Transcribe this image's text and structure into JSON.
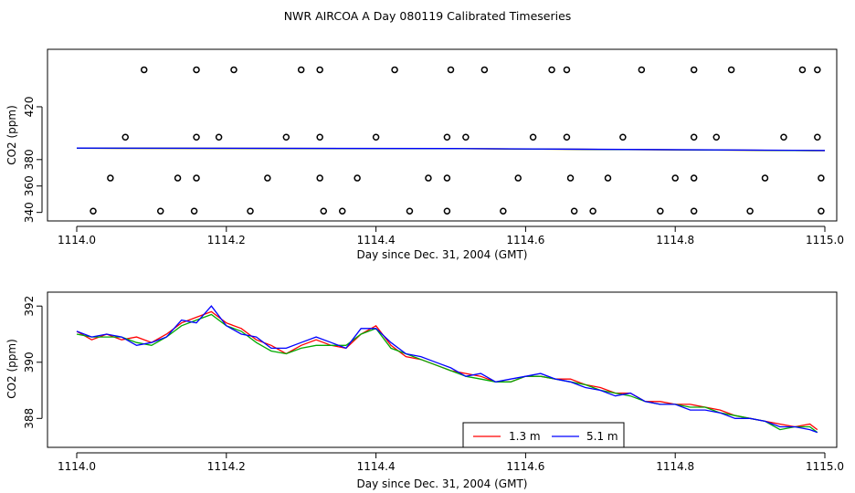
{
  "title": "NWR AIRCOA A  Day 080119  Calibrated Timeseries",
  "chart_data": [
    {
      "type": "scatter",
      "xlabel": "Day since Dec. 31, 2004 (GMT)",
      "ylabel": "CO2 (ppm)",
      "xlim": [
        1114.0,
        1115.0
      ],
      "ylim": [
        337,
        458
      ],
      "x_ticks": [
        "1114.0",
        "1114.2",
        "1114.4",
        "1114.6",
        "1114.8",
        "1115.0"
      ],
      "y_ticks": [
        "340",
        "360",
        "380",
        "420"
      ],
      "series": [
        {
          "marker": "circle",
          "x": [
            1114.09,
            1114.16,
            1114.21,
            1114.3,
            1114.325,
            1114.425,
            1114.5,
            1114.545,
            1114.635,
            1114.655,
            1114.755,
            1114.825,
            1114.875,
            1114.97,
            1114.99,
            1114.065,
            1114.16,
            1114.19,
            1114.28,
            1114.325,
            1114.4,
            1114.495,
            1114.52,
            1114.61,
            1114.655,
            1114.73,
            1114.825,
            1114.855,
            1114.945,
            1114.99,
            1114.045,
            1114.135,
            1114.16,
            1114.255,
            1114.325,
            1114.375,
            1114.47,
            1114.495,
            1114.59,
            1114.66,
            1114.71,
            1114.8,
            1114.825,
            1114.92,
            1114.995,
            1114.022,
            1114.112,
            1114.157,
            1114.232,
            1114.33,
            1114.355,
            1114.445,
            1114.495,
            1114.57,
            1114.665,
            1114.69,
            1114.78,
            1114.825,
            1114.9,
            1114.995
          ],
          "y": [
            448,
            448,
            448,
            448,
            448,
            448,
            448,
            448,
            448,
            448,
            448,
            448,
            448,
            448,
            448,
            397,
            397,
            397,
            397,
            397,
            397,
            397,
            397,
            397,
            397,
            397,
            397,
            397,
            397,
            397,
            366,
            366,
            366,
            366,
            366,
            366,
            366,
            366,
            366,
            366,
            366,
            366,
            366,
            366,
            366,
            341,
            341,
            341,
            341,
            341,
            341,
            341,
            341,
            341,
            341,
            341,
            341,
            341,
            341,
            341
          ]
        },
        {
          "color": "#ff0000",
          "x": [
            1114.0,
            1114.5,
            1115.0
          ],
          "y": [
            388.6,
            388.3,
            386.8
          ]
        },
        {
          "color": "#00aa00",
          "x": [
            1114.0,
            1114.5,
            1115.0
          ],
          "y": [
            388.6,
            388.3,
            386.8
          ]
        },
        {
          "color": "#0000ff",
          "x": [
            1114.0,
            1114.5,
            1115.0
          ],
          "y": [
            388.7,
            388.4,
            386.9
          ]
        }
      ]
    },
    {
      "type": "line",
      "xlabel": "Day since Dec. 31, 2004 (GMT)",
      "ylabel": "CO2 (ppm)",
      "xlim": [
        1114.0,
        1115.0
      ],
      "ylim": [
        387.1,
        392.3
      ],
      "x_ticks": [
        "1114.0",
        "1114.2",
        "1114.4",
        "1114.6",
        "1114.8",
        "1115.0"
      ],
      "y_ticks": [
        "388",
        "390",
        "392"
      ],
      "legend": {
        "placement": "bottom-right",
        "entries": [
          {
            "label": "1.3 m",
            "color": "#ff0000"
          },
          {
            "label": "5.1 m",
            "color": "#0000ff"
          }
        ]
      },
      "series": [
        {
          "name": "1.3 m",
          "color": "#ff0000",
          "x": [
            1114.0,
            1114.02,
            1114.04,
            1114.06,
            1114.08,
            1114.1,
            1114.12,
            1114.14,
            1114.16,
            1114.18,
            1114.2,
            1114.22,
            1114.24,
            1114.26,
            1114.28,
            1114.3,
            1114.32,
            1114.34,
            1114.36,
            1114.38,
            1114.4,
            1114.42,
            1114.44,
            1114.46,
            1114.48,
            1114.5,
            1114.52,
            1114.54,
            1114.56,
            1114.58,
            1114.6,
            1114.62,
            1114.64,
            1114.66,
            1114.68,
            1114.7,
            1114.72,
            1114.74,
            1114.76,
            1114.78,
            1114.8,
            1114.82,
            1114.84,
            1114.86,
            1114.88,
            1114.9,
            1114.92,
            1114.94,
            1114.96,
            1114.98,
            1114.99
          ],
          "y": [
            391.1,
            390.8,
            391.0,
            390.8,
            390.9,
            390.7,
            391.0,
            391.4,
            391.6,
            391.8,
            391.4,
            391.2,
            390.8,
            390.6,
            390.3,
            390.6,
            390.8,
            390.6,
            390.5,
            391.0,
            391.3,
            390.6,
            390.2,
            390.1,
            389.9,
            389.7,
            389.6,
            389.5,
            389.3,
            389.3,
            389.5,
            389.5,
            389.4,
            389.4,
            389.2,
            389.1,
            388.9,
            388.9,
            388.6,
            388.6,
            388.5,
            388.5,
            388.4,
            388.3,
            388.1,
            388.0,
            387.9,
            387.8,
            387.7,
            387.8,
            387.6
          ]
        },
        {
          "color": "#00aa00",
          "x": [
            1114.0,
            1114.02,
            1114.04,
            1114.06,
            1114.08,
            1114.1,
            1114.12,
            1114.14,
            1114.16,
            1114.18,
            1114.2,
            1114.22,
            1114.24,
            1114.26,
            1114.28,
            1114.3,
            1114.32,
            1114.34,
            1114.36,
            1114.38,
            1114.4,
            1114.42,
            1114.44,
            1114.46,
            1114.48,
            1114.5,
            1114.52,
            1114.54,
            1114.56,
            1114.58,
            1114.6,
            1114.62,
            1114.64,
            1114.66,
            1114.68,
            1114.7,
            1114.72,
            1114.74,
            1114.76,
            1114.78,
            1114.8,
            1114.82,
            1114.84,
            1114.86,
            1114.88,
            1114.9,
            1114.92,
            1114.94,
            1114.96,
            1114.98,
            1114.99
          ],
          "y": [
            391.0,
            390.9,
            390.9,
            390.9,
            390.7,
            390.6,
            390.9,
            391.3,
            391.5,
            391.7,
            391.3,
            391.1,
            390.7,
            390.4,
            390.3,
            390.5,
            390.6,
            390.6,
            390.6,
            391.0,
            391.2,
            390.5,
            390.3,
            390.1,
            389.9,
            389.7,
            389.5,
            389.4,
            389.3,
            389.3,
            389.5,
            389.5,
            389.4,
            389.3,
            389.2,
            389.0,
            388.9,
            388.8,
            388.6,
            388.5,
            388.5,
            388.4,
            388.4,
            388.2,
            388.1,
            388.0,
            387.9,
            387.6,
            387.7,
            387.7,
            387.5
          ]
        },
        {
          "name": "5.1 m",
          "color": "#0000ff",
          "x": [
            1114.0,
            1114.02,
            1114.04,
            1114.06,
            1114.08,
            1114.1,
            1114.12,
            1114.14,
            1114.16,
            1114.18,
            1114.2,
            1114.22,
            1114.24,
            1114.26,
            1114.28,
            1114.3,
            1114.32,
            1114.34,
            1114.36,
            1114.38,
            1114.4,
            1114.42,
            1114.44,
            1114.46,
            1114.48,
            1114.5,
            1114.52,
            1114.54,
            1114.56,
            1114.58,
            1114.6,
            1114.62,
            1114.64,
            1114.66,
            1114.68,
            1114.7,
            1114.72,
            1114.74,
            1114.76,
            1114.78,
            1114.8,
            1114.82,
            1114.84,
            1114.86,
            1114.88,
            1114.9,
            1114.92,
            1114.94,
            1114.96,
            1114.98,
            1114.99
          ],
          "y": [
            391.1,
            390.9,
            391.0,
            390.9,
            390.6,
            390.7,
            390.9,
            391.5,
            391.4,
            392.0,
            391.3,
            391.0,
            390.9,
            390.5,
            390.5,
            390.7,
            390.9,
            390.7,
            390.5,
            391.2,
            391.2,
            390.7,
            390.3,
            390.2,
            390.0,
            389.8,
            389.5,
            389.6,
            389.3,
            389.4,
            389.5,
            389.6,
            389.4,
            389.3,
            389.1,
            389.0,
            388.8,
            388.9,
            388.6,
            388.5,
            388.5,
            388.3,
            388.3,
            388.2,
            388.0,
            388.0,
            387.9,
            387.7,
            387.7,
            387.6,
            387.5
          ]
        }
      ]
    }
  ]
}
